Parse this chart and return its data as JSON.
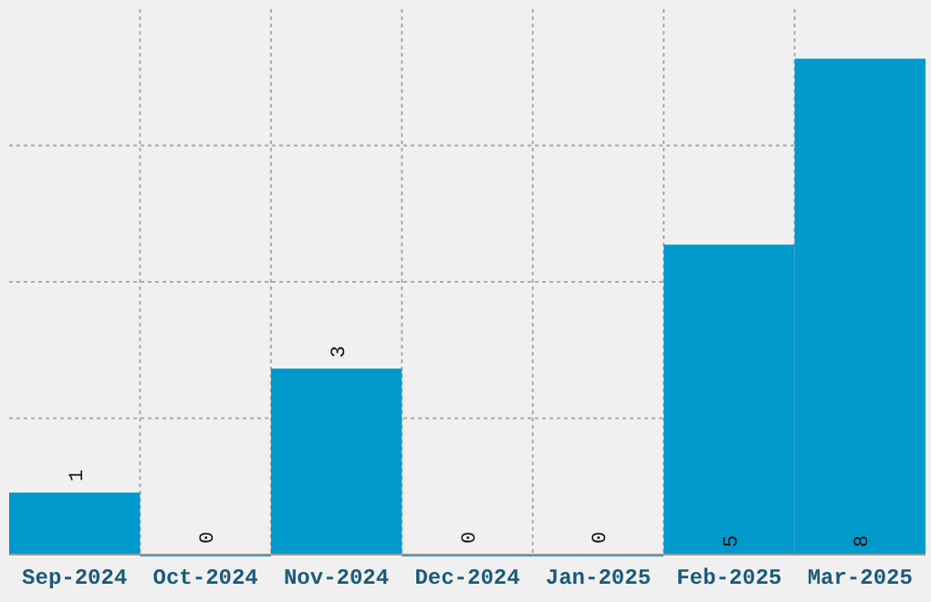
{
  "chart_data": {
    "type": "bar",
    "categories": [
      "Sep-2024",
      "Oct-2024",
      "Nov-2024",
      "Dec-2024",
      "Jan-2025",
      "Feb-2025",
      "Mar-2025"
    ],
    "values": [
      1,
      0,
      3,
      0,
      0,
      5,
      8
    ],
    "color": "#0099cc",
    "data_labels": true,
    "ylim": [
      0,
      8.8
    ],
    "yticks": [
      {
        "value": 2.2,
        "label": null
      },
      {
        "value": 4.4,
        "label": null
      },
      {
        "value": 6.6,
        "label": null
      }
    ],
    "tick_labels": "x",
    "grid": true
  }
}
